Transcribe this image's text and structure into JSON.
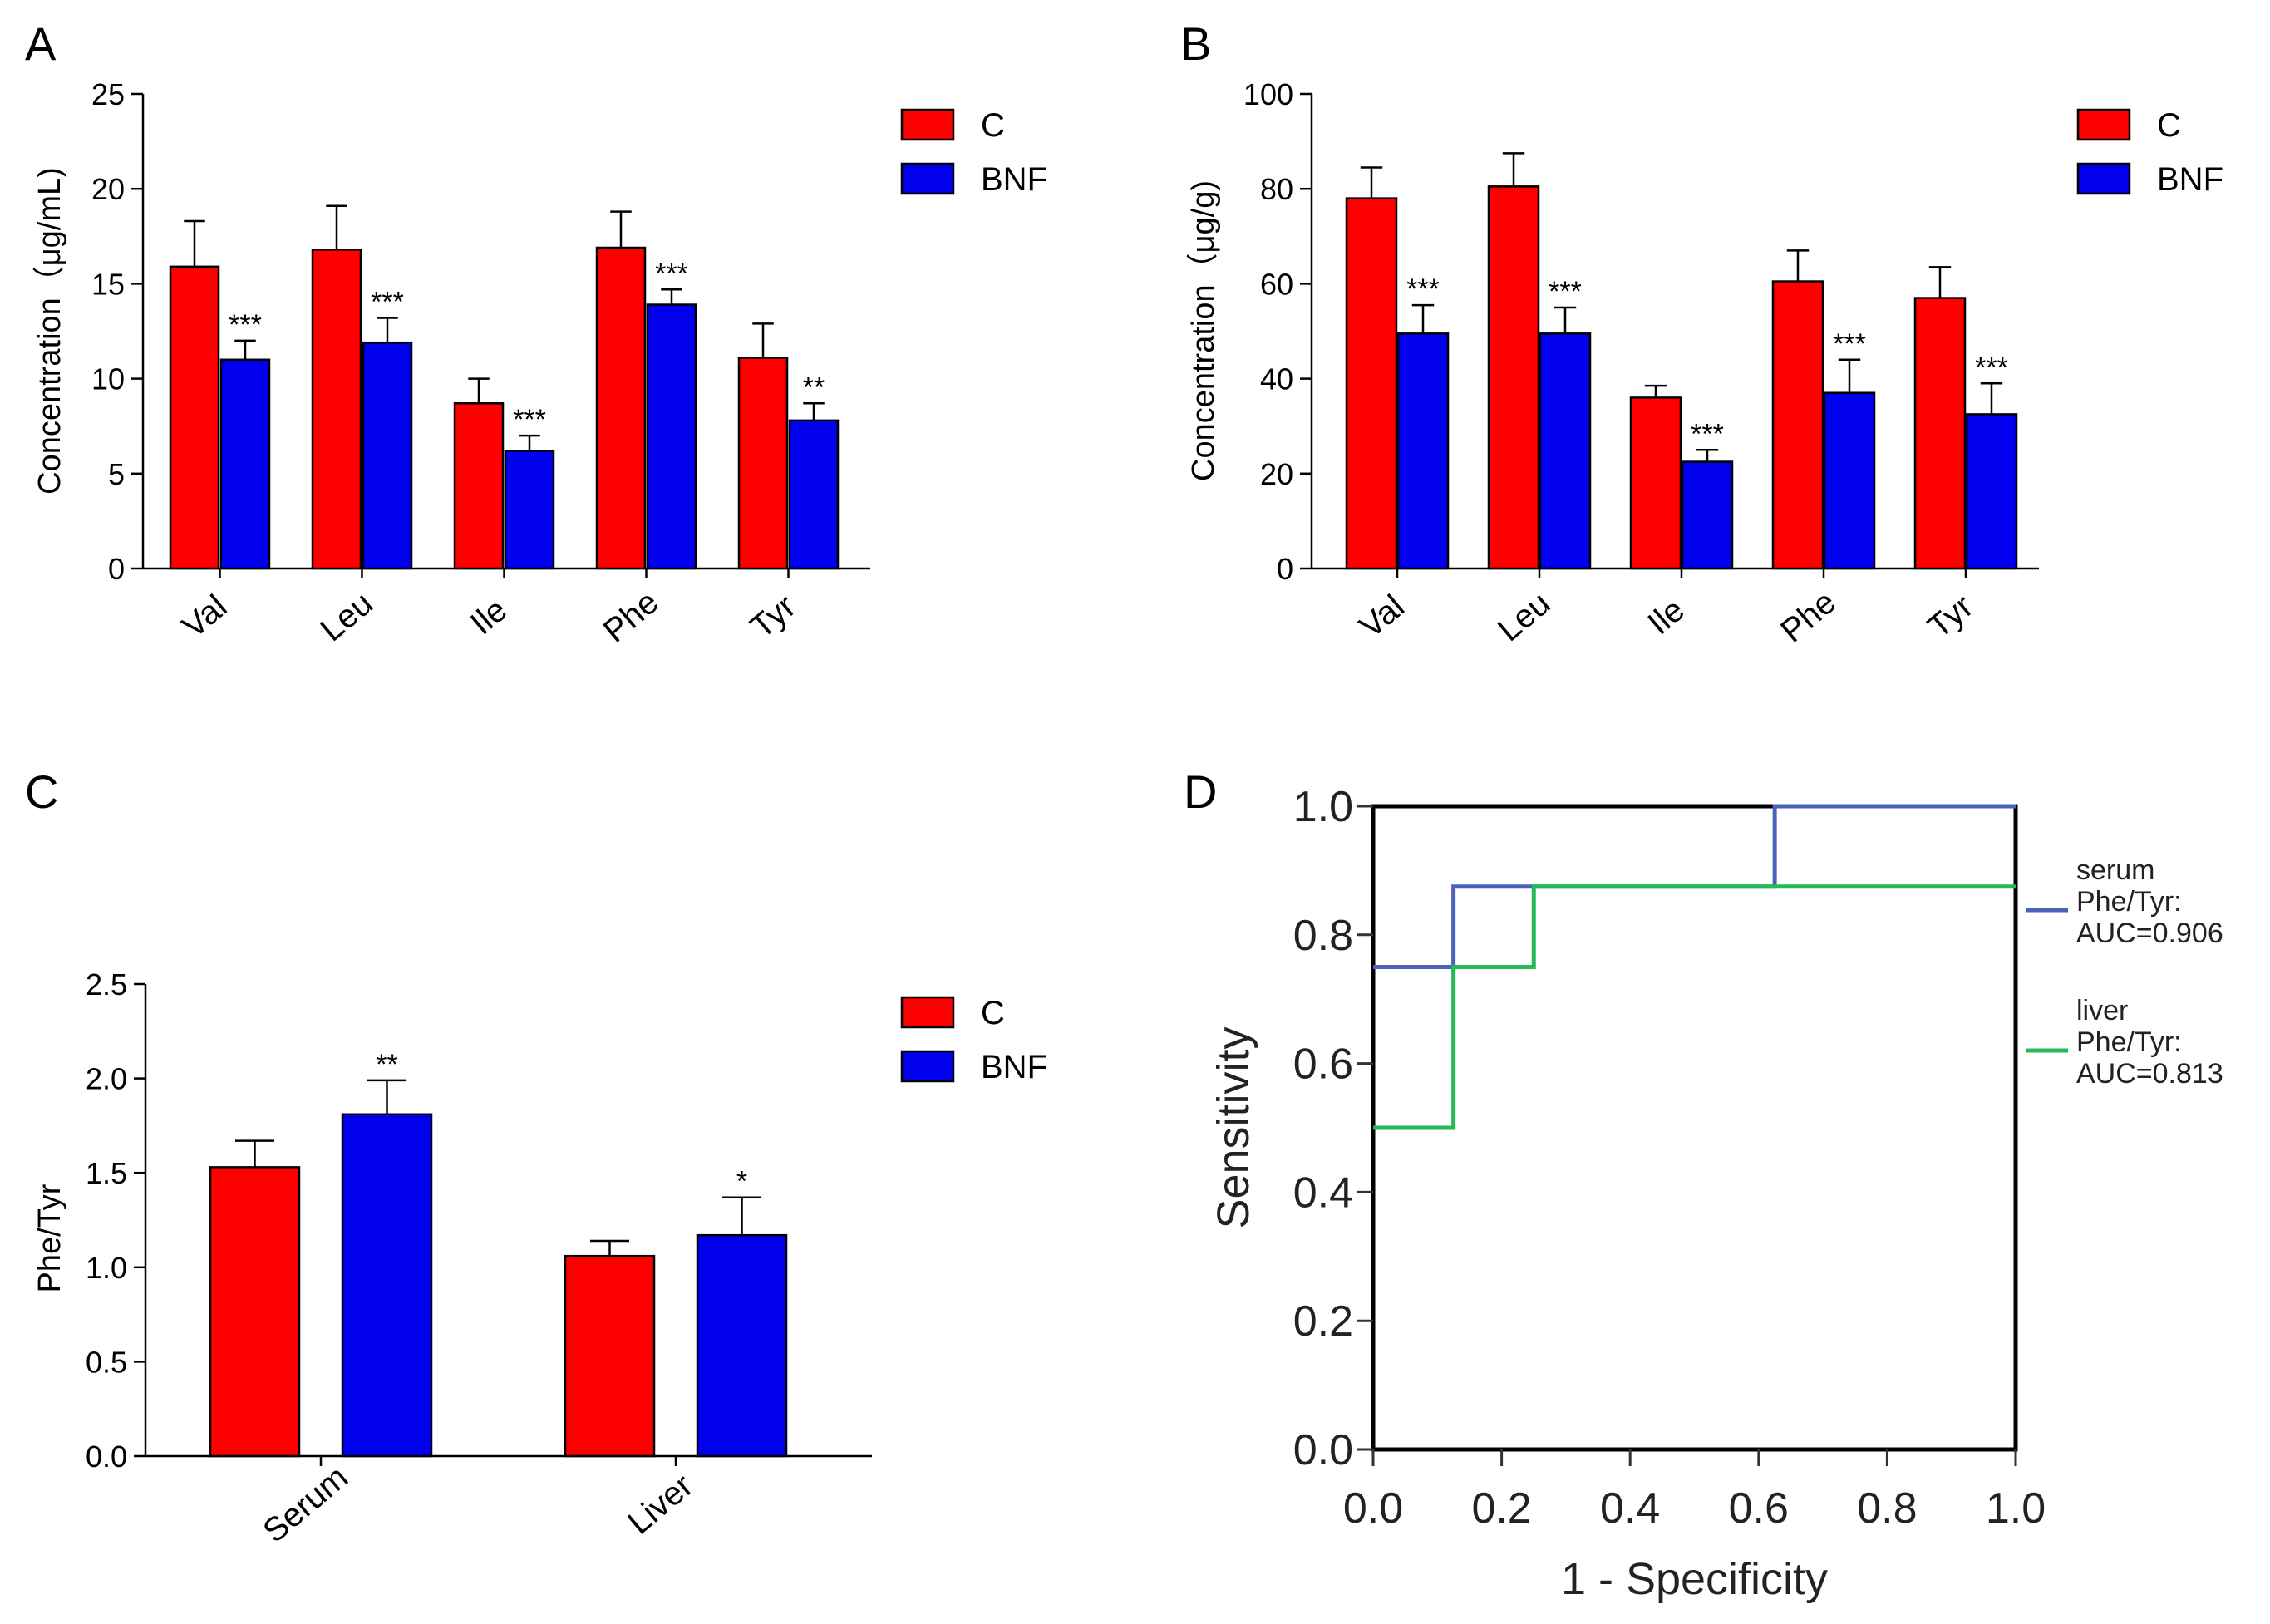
{
  "colors": {
    "control": "#ff0000",
    "bnf": "#0000ee",
    "serum_line": "#4a62b8",
    "liver_line": "#22bb55"
  },
  "chart_data": [
    {
      "panel": "A",
      "type": "bar",
      "ylabel": "Concentration（μg/mL)",
      "ylim": [
        0,
        25
      ],
      "yticks": [
        "0",
        "5",
        "10",
        "15",
        "20",
        "25"
      ],
      "categories": [
        "Val",
        "Leu",
        "Ile",
        "Phe",
        "Tyr"
      ],
      "series": [
        {
          "name": "C",
          "color_key": "control",
          "values": [
            15.9,
            16.8,
            8.7,
            16.9,
            11.1
          ],
          "errors": [
            2.4,
            2.3,
            1.3,
            1.9,
            1.8
          ]
        },
        {
          "name": "BNF",
          "color_key": "bnf",
          "values": [
            11.0,
            11.9,
            6.2,
            13.9,
            7.8
          ],
          "errors": [
            1.0,
            1.3,
            0.8,
            0.8,
            0.9
          ]
        }
      ],
      "annotations": [
        "***",
        "***",
        "***",
        "***",
        "**"
      ],
      "legend": [
        "C",
        "BNF"
      ]
    },
    {
      "panel": "B",
      "type": "bar",
      "ylabel": "Concentration（μg/g)",
      "ylim": [
        0,
        100
      ],
      "yticks": [
        "0",
        "20",
        "40",
        "60",
        "80",
        "100"
      ],
      "categories": [
        "Val",
        "Leu",
        "Ile",
        "Phe",
        "Tyr"
      ],
      "series": [
        {
          "name": "C",
          "color_key": "control",
          "values": [
            78,
            80.5,
            36,
            60.5,
            57
          ],
          "errors": [
            6.5,
            7,
            2.5,
            6.5,
            6.5
          ]
        },
        {
          "name": "BNF",
          "color_key": "bnf",
          "values": [
            49.5,
            49.5,
            22.5,
            37,
            32.5
          ],
          "errors": [
            6,
            5.5,
            2.5,
            7,
            6.5
          ]
        }
      ],
      "annotations": [
        "***",
        "***",
        "***",
        "***",
        "***"
      ],
      "legend": [
        "C",
        "BNF"
      ]
    },
    {
      "panel": "C",
      "type": "bar",
      "ylabel": "Phe/Tyr",
      "ylim": [
        0,
        2.5
      ],
      "yticks": [
        "0.0",
        "0.5",
        "1.0",
        "1.5",
        "2.0",
        "2.5"
      ],
      "categories": [
        "Serum",
        "Liver"
      ],
      "series": [
        {
          "name": "C",
          "color_key": "control",
          "values": [
            1.53,
            1.06
          ],
          "errors": [
            0.14,
            0.08
          ]
        },
        {
          "name": "BNF",
          "color_key": "bnf",
          "values": [
            1.81,
            1.17
          ],
          "errors": [
            0.18,
            0.2
          ]
        }
      ],
      "annotations": [
        "**",
        "*"
      ],
      "legend": [
        "C",
        "BNF"
      ]
    },
    {
      "panel": "D",
      "type": "line",
      "title": "",
      "xlabel": "1 - Specificity",
      "ylabel": "Sensitivity",
      "xlim": [
        0,
        1
      ],
      "ylim": [
        0,
        1
      ],
      "xticks": [
        "0.0",
        "0.2",
        "0.4",
        "0.6",
        "0.8",
        "1.0"
      ],
      "yticks": [
        "0.0",
        "0.2",
        "0.4",
        "0.6",
        "0.8",
        "1.0"
      ],
      "series": [
        {
          "name": "serum Phe/Tyr: AUC=0.906",
          "label_lines": [
            "serum",
            "Phe/Tyr:",
            "AUC=0.906"
          ],
          "color_key": "serum_line",
          "x": [
            0,
            0.125,
            0.125,
            0.625,
            0.625,
            1.0
          ],
          "y": [
            0.75,
            0.75,
            0.875,
            0.875,
            1.0,
            1.0
          ]
        },
        {
          "name": "liver Phe/Tyr: AUC=0.813",
          "label_lines": [
            "liver",
            "Phe/Tyr:",
            "AUC=0.813"
          ],
          "color_key": "liver_line",
          "x": [
            0,
            0.125,
            0.125,
            0.25,
            0.25,
            1.0
          ],
          "y": [
            0.5,
            0.5,
            0.75,
            0.75,
            0.875,
            0.875
          ]
        }
      ]
    }
  ]
}
